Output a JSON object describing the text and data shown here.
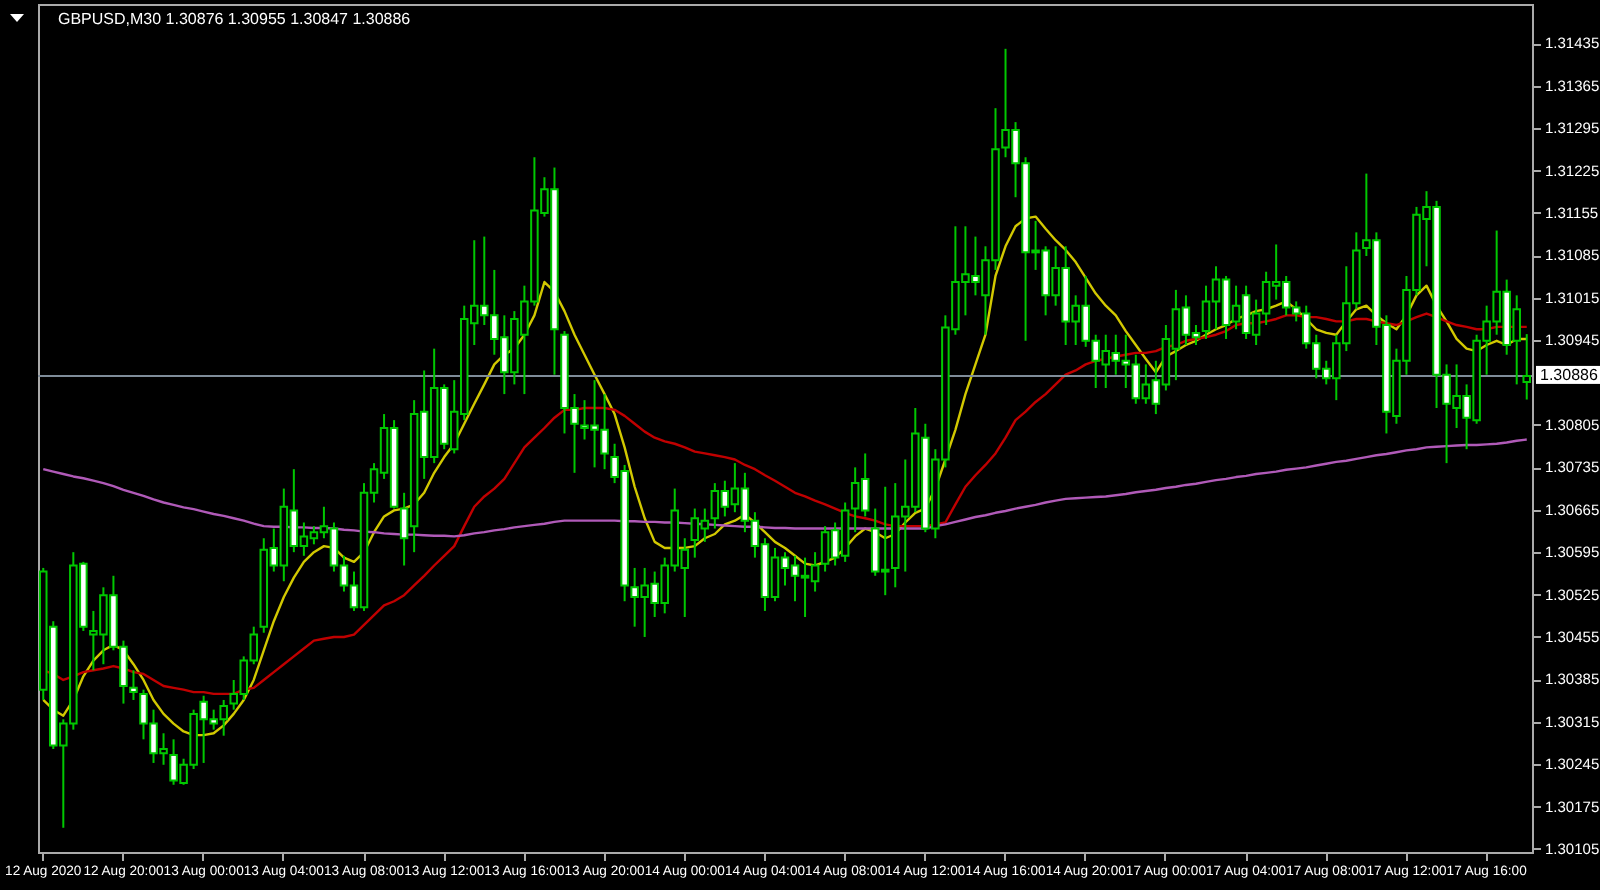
{
  "chart_data": {
    "type": "candlestick",
    "title": "GBPUSD,M30  1.30876 1.30955 1.30847 1.30886",
    "categories": [
      "12 Aug 2020",
      null,
      null,
      null,
      null,
      null,
      null,
      null,
      "12 Aug 20:00",
      null,
      null,
      null,
      null,
      null,
      null,
      null,
      "13 Aug 00:00",
      null,
      null,
      null,
      null,
      null,
      null,
      null,
      "13 Aug 04:00",
      null,
      null,
      null,
      null,
      null,
      null,
      null,
      "13 Aug 08:00",
      null,
      null,
      null,
      null,
      null,
      null,
      null,
      "13 Aug 12:00",
      null,
      null,
      null,
      null,
      null,
      null,
      null,
      "13 Aug 16:00",
      null,
      null,
      null,
      null,
      null,
      null,
      null,
      "13 Aug 20:00",
      null,
      null,
      null,
      null,
      null,
      null,
      null,
      "14 Aug 00:00",
      null,
      null,
      null,
      null,
      null,
      null,
      null,
      "14 Aug 04:00",
      null,
      null,
      null,
      null,
      null,
      null,
      null,
      "14 Aug 08:00",
      null,
      null,
      null,
      null,
      null,
      null,
      null,
      "14 Aug 12:00",
      null,
      null,
      null,
      null,
      null,
      null,
      null,
      "14 Aug 16:00",
      null,
      null,
      null,
      null,
      null,
      null,
      null,
      "14 Aug 20:00",
      null,
      null,
      null,
      null,
      null,
      null,
      null,
      "17 Aug 00:00",
      null,
      null,
      null,
      null,
      null,
      null,
      null,
      "17 Aug 04:00",
      null,
      null,
      null,
      null,
      null,
      null,
      null,
      "17 Aug 08:00",
      null,
      null,
      null,
      null,
      null,
      null,
      null,
      "17 Aug 12:00",
      null,
      null,
      null,
      null,
      null,
      null,
      null,
      "17 Aug 16:00",
      null,
      null,
      null,
      null
    ],
    "ohlc": [
      [
        1.30368,
        1.30569,
        1.30351,
        1.30563
      ],
      [
        1.30472,
        1.30481,
        1.3027,
        1.30276
      ],
      [
        1.30276,
        1.30319,
        1.3014,
        1.30312
      ],
      [
        1.30312,
        1.30595,
        1.30302,
        1.30573
      ],
      [
        1.30576,
        1.30579,
        1.30465,
        1.30472
      ],
      [
        1.30459,
        1.30498,
        1.304,
        1.30465
      ],
      [
        1.30459,
        1.30537,
        1.3041,
        1.30524
      ],
      [
        1.30524,
        1.30556,
        1.30433,
        1.30439
      ],
      [
        1.30439,
        1.30449,
        1.30345,
        1.30374
      ],
      [
        1.30371,
        1.304,
        1.30351,
        1.30364
      ],
      [
        1.30361,
        1.30368,
        1.30286,
        1.30312
      ],
      [
        1.30312,
        1.30335,
        1.30247,
        1.30263
      ],
      [
        1.30263,
        1.30296,
        1.30244,
        1.3027
      ],
      [
        1.3026,
        1.30286,
        1.30211,
        1.30218
      ],
      [
        1.30214,
        1.30254,
        1.30211,
        1.30244
      ],
      [
        1.30244,
        1.30335,
        1.30237,
        1.30328
      ],
      [
        1.30348,
        1.30358,
        1.30247,
        1.30319
      ],
      [
        1.30319,
        1.30335,
        1.30302,
        1.30312
      ],
      [
        1.30319,
        1.30351,
        1.30292,
        1.30341
      ],
      [
        1.30345,
        1.30384,
        1.30335,
        1.30361
      ],
      [
        1.30361,
        1.30423,
        1.30351,
        1.30416
      ],
      [
        1.30416,
        1.30472,
        1.3041,
        1.30459
      ],
      [
        1.30472,
        1.30618,
        1.30462,
        1.30599
      ],
      [
        1.30602,
        1.30634,
        1.30563,
        1.30573
      ],
      [
        1.30573,
        1.307,
        1.30547,
        1.3067
      ],
      [
        1.30664,
        1.30732,
        1.30595,
        1.30605
      ],
      [
        1.30605,
        1.30644,
        1.30589,
        1.30621
      ],
      [
        1.30618,
        1.30638,
        1.30608,
        1.30628
      ],
      [
        1.30628,
        1.3067,
        1.30618,
        1.30638
      ],
      [
        1.30634,
        1.30644,
        1.30563,
        1.30573
      ],
      [
        1.30573,
        1.30589,
        1.3053,
        1.3054
      ],
      [
        1.3054,
        1.30563,
        1.30498,
        1.30504
      ],
      [
        1.30504,
        1.30709,
        1.30498,
        1.30693
      ],
      [
        1.30693,
        1.30742,
        1.30677,
        1.30732
      ],
      [
        1.30726,
        1.30823,
        1.30716,
        1.308
      ],
      [
        1.308,
        1.30813,
        1.30667,
        1.3067
      ],
      [
        1.30667,
        1.30693,
        1.30573,
        1.30618
      ],
      [
        1.30638,
        1.30846,
        1.30595,
        1.30823
      ],
      [
        1.30827,
        1.30895,
        1.30716,
        1.30752
      ],
      [
        1.30752,
        1.30931,
        1.30742,
        1.30866
      ],
      [
        1.30866,
        1.30872,
        1.30765,
        1.30774
      ],
      [
        1.30765,
        1.30879,
        1.30758,
        1.30827
      ],
      [
        1.30823,
        1.31002,
        1.30813,
        1.3098
      ],
      [
        1.30973,
        1.3111,
        1.30937,
        1.31002
      ],
      [
        1.31002,
        1.31116,
        1.3097,
        1.30986
      ],
      [
        1.30986,
        1.31061,
        1.30921,
        1.30947
      ],
      [
        1.3095,
        1.30986,
        1.30856,
        1.30892
      ],
      [
        1.30892,
        1.30993,
        1.30872,
        1.3098
      ],
      [
        1.30954,
        1.31035,
        1.30856,
        1.31009
      ],
      [
        1.31009,
        1.31247,
        1.31002,
        1.31159
      ],
      [
        1.31155,
        1.31214,
        1.31149,
        1.31194
      ],
      [
        1.31194,
        1.3123,
        1.30888,
        1.30963
      ],
      [
        1.30954,
        1.3096,
        1.30791,
        1.30833
      ],
      [
        1.30833,
        1.30856,
        1.30726,
        1.30807
      ],
      [
        1.30804,
        1.30846,
        1.30781,
        1.308
      ],
      [
        1.30804,
        1.30879,
        1.30735,
        1.30797
      ],
      [
        1.30797,
        1.30856,
        1.30732,
        1.30758
      ],
      [
        1.30752,
        1.30774,
        1.30709,
        1.30719
      ],
      [
        1.30729,
        1.30739,
        1.30514,
        1.3054
      ],
      [
        1.30537,
        1.30569,
        1.30472,
        1.30521
      ],
      [
        1.30521,
        1.30569,
        1.30455,
        1.3054
      ],
      [
        1.30543,
        1.30563,
        1.30488,
        1.30511
      ],
      [
        1.30511,
        1.30586,
        1.30494,
        1.30573
      ],
      [
        1.30573,
        1.307,
        1.30563,
        1.30664
      ],
      [
        1.30569,
        1.30618,
        1.30488,
        1.30599
      ],
      [
        1.30615,
        1.30667,
        1.30586,
        1.30651
      ],
      [
        1.30634,
        1.30667,
        1.30612,
        1.30647
      ],
      [
        1.30651,
        1.30709,
        1.30634,
        1.30696
      ],
      [
        1.30696,
        1.30713,
        1.30654,
        1.3067
      ],
      [
        1.30674,
        1.30742,
        1.30661,
        1.307
      ],
      [
        1.307,
        1.30726,
        1.30628,
        1.30647
      ],
      [
        1.30647,
        1.30661,
        1.30586,
        1.30605
      ],
      [
        1.30608,
        1.30618,
        1.30498,
        1.30521
      ],
      [
        1.30521,
        1.30602,
        1.30514,
        1.30586
      ],
      [
        1.30586,
        1.30595,
        1.3054,
        1.30569
      ],
      [
        1.30573,
        1.30589,
        1.30514,
        1.30556
      ],
      [
        1.30553,
        1.30586,
        1.30488,
        1.30556
      ],
      [
        1.30547,
        1.30595,
        1.3053,
        1.30573
      ],
      [
        1.30576,
        1.30638,
        1.30563,
        1.30628
      ],
      [
        1.30631,
        1.30644,
        1.30573,
        1.30586
      ],
      [
        1.30589,
        1.30677,
        1.30579,
        1.30664
      ],
      [
        1.30667,
        1.30735,
        1.30628,
        1.30709
      ],
      [
        1.30716,
        1.30758,
        1.30654,
        1.30664
      ],
      [
        1.30634,
        1.30667,
        1.30556,
        1.30563
      ],
      [
        1.30563,
        1.30703,
        1.30524,
        1.30566
      ],
      [
        1.30569,
        1.30709,
        1.30537,
        1.30654
      ],
      [
        1.30654,
        1.30748,
        1.30563,
        1.3067
      ],
      [
        1.3067,
        1.30833,
        1.30661,
        1.30791
      ],
      [
        1.30784,
        1.30807,
        1.30628,
        1.30634
      ],
      [
        1.30634,
        1.30765,
        1.30618,
        1.30748
      ],
      [
        1.30748,
        1.30986,
        1.30735,
        1.30966
      ],
      [
        1.30963,
        1.31133,
        1.30954,
        1.31041
      ],
      [
        1.31041,
        1.31133,
        1.30986,
        1.31054
      ],
      [
        1.31051,
        1.31116,
        1.31019,
        1.31041
      ],
      [
        1.31019,
        1.311,
        1.30954,
        1.31077
      ],
      [
        1.31077,
        1.31328,
        1.31061,
        1.3126
      ],
      [
        1.31263,
        1.31426,
        1.31247,
        1.31292
      ],
      [
        1.31292,
        1.31305,
        1.31181,
        1.31237
      ],
      [
        1.31237,
        1.31247,
        1.30944,
        1.3109
      ],
      [
        1.3109,
        1.31142,
        1.31061,
        1.31093
      ],
      [
        1.31093,
        1.311,
        1.30986,
        1.31019
      ],
      [
        1.31019,
        1.311,
        1.31002,
        1.31064
      ],
      [
        1.31064,
        1.311,
        1.30937,
        1.30976
      ],
      [
        1.30976,
        1.31019,
        1.30937,
        1.31002
      ],
      [
        1.31002,
        1.31051,
        1.30934,
        1.30944
      ],
      [
        1.30944,
        1.30954,
        1.30866,
        1.30911
      ],
      [
        1.30905,
        1.30954,
        1.30866,
        1.30927
      ],
      [
        1.30924,
        1.30954,
        1.30888,
        1.30911
      ],
      [
        1.30911,
        1.30954,
        1.30866,
        1.30905
      ],
      [
        1.30905,
        1.30921,
        1.3084,
        1.30849
      ],
      [
        1.30849,
        1.30905,
        1.3084,
        1.30872
      ],
      [
        1.30879,
        1.30911,
        1.30823,
        1.3084
      ],
      [
        1.30872,
        1.3097,
        1.30862,
        1.30947
      ],
      [
        1.30931,
        1.31028,
        1.30879,
        1.30996
      ],
      [
        1.30999,
        1.31019,
        1.30937,
        1.30954
      ],
      [
        1.30957,
        1.3097,
        1.30937,
        1.3095
      ],
      [
        1.3096,
        1.31035,
        1.30947,
        1.31009
      ],
      [
        1.31009,
        1.31067,
        1.30963,
        1.31045
      ],
      [
        1.31045,
        1.31051,
        1.30947,
        1.3097
      ],
      [
        1.30976,
        1.31035,
        1.30963,
        1.31002
      ],
      [
        1.31019,
        1.31035,
        1.30947,
        1.30957
      ],
      [
        1.30954,
        1.31012,
        1.30937,
        1.30989
      ],
      [
        1.30989,
        1.31058,
        1.3097,
        1.31041
      ],
      [
        1.31035,
        1.31103,
        1.31012,
        1.31041
      ],
      [
        1.31041,
        1.31051,
        1.30986,
        1.30999
      ],
      [
        1.30999,
        1.31009,
        1.30976,
        1.30989
      ],
      [
        1.30989,
        1.31002,
        1.30931,
        1.3094
      ],
      [
        1.3094,
        1.30954,
        1.30882,
        1.30898
      ],
      [
        1.30898,
        1.30911,
        1.30872,
        1.30882
      ],
      [
        1.30882,
        1.30954,
        1.30846,
        1.3094
      ],
      [
        1.3094,
        1.31067,
        1.30927,
        1.31006
      ],
      [
        1.31006,
        1.31123,
        1.30996,
        1.31093
      ],
      [
        1.31097,
        1.3122,
        1.31084,
        1.3111
      ],
      [
        1.3111,
        1.31123,
        1.30937,
        1.30967
      ],
      [
        1.3097,
        1.30986,
        1.30791,
        1.30827
      ],
      [
        1.3082,
        1.30931,
        1.30807,
        1.30911
      ],
      [
        1.30911,
        1.31051,
        1.30888,
        1.31028
      ],
      [
        1.31028,
        1.31165,
        1.31019,
        1.31152
      ],
      [
        1.31145,
        1.31191,
        1.31067,
        1.31165
      ],
      [
        1.31165,
        1.31175,
        1.30833,
        1.30888
      ],
      [
        1.30888,
        1.30905,
        1.30742,
        1.3084
      ],
      [
        1.30833,
        1.30905,
        1.308,
        1.30853
      ],
      [
        1.30853,
        1.30872,
        1.30765,
        1.30817
      ],
      [
        1.30813,
        1.30954,
        1.30807,
        1.30944
      ],
      [
        1.30944,
        1.31002,
        1.30888,
        1.30976
      ],
      [
        1.30976,
        1.31126,
        1.30954,
        1.31025
      ],
      [
        1.31025,
        1.31045,
        1.30921,
        1.30937
      ],
      [
        1.30944,
        1.31019,
        1.30872,
        1.30996
      ],
      [
        1.30876,
        1.30955,
        1.30847,
        1.30886
      ]
    ],
    "series": [
      {
        "type": "line",
        "color": "#d2c800",
        "values": [
          1.30351,
          1.30335,
          1.30325,
          1.30351,
          1.3039,
          1.30416,
          1.30433,
          1.30442,
          1.30433,
          1.3041,
          1.30384,
          1.30351,
          1.30328,
          1.30312,
          1.30299,
          1.30293,
          1.30293,
          1.30296,
          1.30309,
          1.30328,
          1.30351,
          1.30384,
          1.30433,
          1.30481,
          1.30521,
          1.30553,
          1.30579,
          1.30595,
          1.30605,
          1.30602,
          1.30586,
          1.30579,
          1.30595,
          1.30628,
          1.30654,
          1.30664,
          1.30667,
          1.30674,
          1.30693,
          1.30726,
          1.30752,
          1.30774,
          1.30807,
          1.3084,
          1.30872,
          1.30905,
          1.30921,
          1.30931,
          1.30954,
          1.30986,
          1.31041,
          1.31025,
          1.30993,
          1.30954,
          1.30921,
          1.30888,
          1.30856,
          1.30823,
          1.30768,
          1.30703,
          1.30651,
          1.30612,
          1.30602,
          1.30602,
          1.30602,
          1.30605,
          1.30618,
          1.30625,
          1.30641,
          1.30647,
          1.30657,
          1.30644,
          1.30628,
          1.30612,
          1.30602,
          1.30589,
          1.30576,
          1.30573,
          1.30579,
          1.30586,
          1.30602,
          1.30621,
          1.30634,
          1.30628,
          1.30618,
          1.30625,
          1.30644,
          1.3066,
          1.30667,
          1.307,
          1.30748,
          1.30797,
          1.30856,
          1.30905,
          1.30954,
          1.31051,
          1.311,
          1.31133,
          1.31146,
          1.31149,
          1.31129,
          1.3111,
          1.31094,
          1.31074,
          1.31048,
          1.31022,
          1.31002,
          1.30986,
          1.3096,
          1.30937,
          1.30914,
          1.30892,
          1.30918,
          1.30927,
          1.30937,
          1.30944,
          1.30954,
          1.30963,
          1.3097,
          1.3098,
          1.30986,
          1.30993,
          1.30996,
          1.31002,
          1.31009,
          1.30996,
          1.3098,
          1.30963,
          1.30957,
          1.30954,
          1.30976,
          1.30996,
          1.31002,
          1.30986,
          1.30973,
          1.30963,
          1.30986,
          1.31019,
          1.31035,
          1.31002,
          1.30976,
          1.30947,
          1.30931,
          1.30927,
          1.30937,
          1.30944,
          1.30937,
          1.30947,
          1.30947
        ]
      },
      {
        "type": "line",
        "color": "#c00000",
        "values": [
          1.304,
          1.30394,
          1.30384,
          1.3039,
          1.30397,
          1.304,
          1.30403,
          1.30407,
          1.30403,
          1.30397,
          1.30394,
          1.30384,
          1.30374,
          1.30371,
          1.30368,
          1.30364,
          1.30364,
          1.30361,
          1.30361,
          1.30361,
          1.30368,
          1.30371,
          1.30384,
          1.30397,
          1.3041,
          1.30423,
          1.30436,
          1.30449,
          1.30452,
          1.30455,
          1.30455,
          1.30459,
          1.30475,
          1.30491,
          1.30507,
          1.30514,
          1.30524,
          1.3054,
          1.30556,
          1.30573,
          1.30589,
          1.30605,
          1.30638,
          1.3067,
          1.30687,
          1.307,
          1.30716,
          1.30742,
          1.30768,
          1.30784,
          1.308,
          1.30817,
          1.3083,
          1.3083,
          1.30833,
          1.30833,
          1.30833,
          1.3083,
          1.3082,
          1.30807,
          1.30794,
          1.30784,
          1.30778,
          1.30774,
          1.30768,
          1.30761,
          1.30758,
          1.30755,
          1.30752,
          1.30748,
          1.30739,
          1.30732,
          1.30722,
          1.30713,
          1.30703,
          1.30693,
          1.30687,
          1.3068,
          1.30674,
          1.30667,
          1.3066,
          1.30654,
          1.30651,
          1.30647,
          1.30641,
          1.30638,
          1.30638,
          1.30638,
          1.30638,
          1.30641,
          1.30644,
          1.30674,
          1.30703,
          1.30722,
          1.30739,
          1.30758,
          1.30784,
          1.30813,
          1.30827,
          1.30843,
          1.30856,
          1.30872,
          1.30888,
          1.30895,
          1.30905,
          1.30911,
          1.30914,
          1.30918,
          1.30921,
          1.30924,
          1.30924,
          1.30927,
          1.30934,
          1.30937,
          1.30944,
          1.30947,
          1.3095,
          1.30954,
          1.3096,
          1.3097,
          1.30973,
          1.30973,
          1.30976,
          1.3098,
          1.30986,
          1.30986,
          1.30983,
          1.30983,
          1.3098,
          1.30976,
          1.30976,
          1.3098,
          1.3098,
          1.30976,
          1.30973,
          1.3097,
          1.30976,
          1.30983,
          1.30989,
          1.30983,
          1.30976,
          1.3097,
          1.30967,
          1.30963,
          1.30963,
          1.30967,
          1.30967,
          1.30967,
          1.30967
        ]
      },
      {
        "type": "line",
        "color": "#b05ab8",
        "values": [
          1.30732,
          1.30728,
          1.30724,
          1.3072,
          1.30717,
          1.30713,
          1.30709,
          1.30704,
          1.30698,
          1.30693,
          1.30688,
          1.30682,
          1.30677,
          1.30673,
          1.30669,
          1.30666,
          1.30662,
          1.30658,
          1.30655,
          1.30651,
          1.30647,
          1.30642,
          1.30638,
          1.30637,
          1.30637,
          1.30636,
          1.30636,
          1.30635,
          1.30635,
          1.30634,
          1.30632,
          1.30631,
          1.30629,
          1.30628,
          1.30626,
          1.30625,
          1.30624,
          1.30624,
          1.30623,
          1.30622,
          1.30622,
          1.30621,
          1.30623,
          1.30626,
          1.30628,
          1.30631,
          1.30633,
          1.30636,
          1.30638,
          1.3064,
          1.30642,
          1.30645,
          1.30647,
          1.30647,
          1.30647,
          1.30647,
          1.30647,
          1.30647,
          1.30646,
          1.30646,
          1.30645,
          1.30645,
          1.30644,
          1.30644,
          1.30643,
          1.30642,
          1.30641,
          1.3064,
          1.30639,
          1.30638,
          1.30637,
          1.30637,
          1.30636,
          1.30635,
          1.30635,
          1.30634,
          1.30634,
          1.30634,
          1.30634,
          1.30634,
          1.30634,
          1.30634,
          1.30634,
          1.30634,
          1.30634,
          1.30634,
          1.30634,
          1.30634,
          1.30634,
          1.30638,
          1.30641,
          1.30645,
          1.30649,
          1.30653,
          1.30656,
          1.3066,
          1.30663,
          1.30667,
          1.3067,
          1.30673,
          1.30677,
          1.3068,
          1.30683,
          1.30684,
          1.30685,
          1.30686,
          1.30687,
          1.30689,
          1.30691,
          1.30694,
          1.30696,
          1.30698,
          1.30701,
          1.30703,
          1.30706,
          1.30708,
          1.30711,
          1.30714,
          1.30716,
          1.30719,
          1.30721,
          1.30724,
          1.30726,
          1.30728,
          1.30731,
          1.30733,
          1.30735,
          1.30738,
          1.30741,
          1.30744,
          1.30746,
          1.30749,
          1.30752,
          1.30755,
          1.30757,
          1.3076,
          1.30763,
          1.30765,
          1.30768,
          1.30769,
          1.3077,
          1.30771,
          1.30772,
          1.30772,
          1.30773,
          1.30774,
          1.30776,
          1.30779,
          1.30781
        ]
      }
    ],
    "ylim": [
      1.301,
      1.315
    ],
    "yticks": [
      1.30105,
      1.30175,
      1.30245,
      1.30315,
      1.30385,
      1.30455,
      1.30525,
      1.30595,
      1.30665,
      1.30735,
      1.30805,
      1.30945,
      1.31015,
      1.31085,
      1.31155,
      1.31225,
      1.31295,
      1.31365,
      1.31435
    ],
    "ref_lines": [
      {
        "axis": "y",
        "value": 1.30886,
        "label": "1.30886",
        "color": "#7f8c99"
      }
    ]
  }
}
